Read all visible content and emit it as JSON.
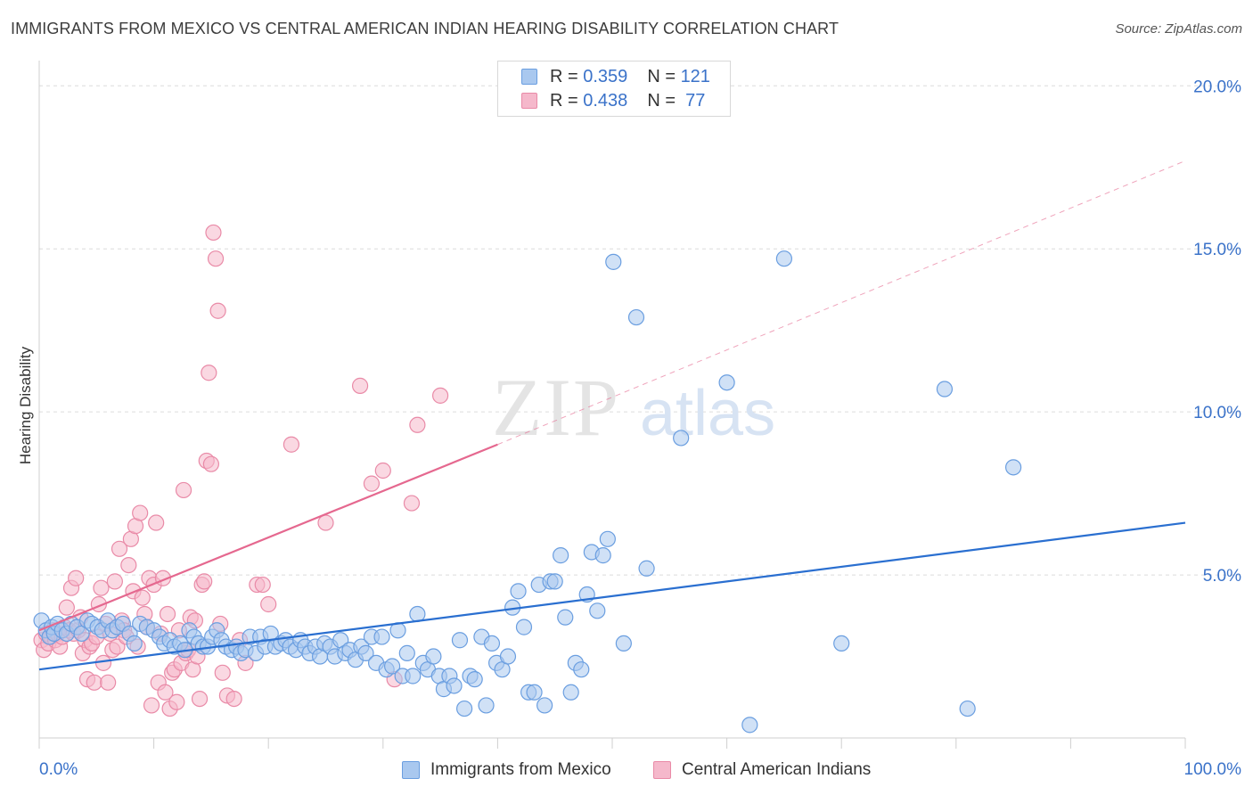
{
  "header": {
    "title": "IMMIGRANTS FROM MEXICO VS CENTRAL AMERICAN INDIAN HEARING DISABILITY CORRELATION CHART",
    "source": "Source: ZipAtlas.com"
  },
  "watermark": {
    "zip": "ZIP",
    "atlas": "atlas"
  },
  "legend": {
    "rows": [
      {
        "r_label": "R =",
        "r_value": "0.359",
        "n_label": "N =",
        "n_value": "121"
      },
      {
        "r_label": "R =",
        "r_value": "0.438",
        "n_label": "N =",
        "n_value": "77"
      }
    ]
  },
  "bottom_legend": {
    "series1": "Immigrants from Mexico",
    "series2": "Central American Indians"
  },
  "colors": {
    "blue_fill": "#a9c8ef",
    "blue_stroke": "#6a9ee0",
    "blue_line": "#2a6fd0",
    "pink_fill": "#f5b8cb",
    "pink_stroke": "#e98aa7",
    "pink_line": "#e5688f",
    "tick_label": "#3a72c9",
    "grid": "#dcdcdc"
  },
  "chart_data": {
    "type": "scatter",
    "title": "IMMIGRANTS FROM MEXICO VS CENTRAL AMERICAN INDIAN HEARING DISABILITY CORRELATION CHART",
    "xlabel": "",
    "ylabel": "Hearing Disability",
    "xlim": [
      0,
      100
    ],
    "ylim": [
      0,
      20.5
    ],
    "x_tick_labels": [
      {
        "value": 0,
        "label": "0.0%"
      },
      {
        "value": 100,
        "label": "100.0%"
      }
    ],
    "y_tick_labels": [
      {
        "value": 5,
        "label": "5.0%"
      },
      {
        "value": 10,
        "label": "10.0%"
      },
      {
        "value": 15,
        "label": "15.0%"
      },
      {
        "value": 20,
        "label": "20.0%"
      }
    ],
    "grid": true,
    "legend_position": "top-center",
    "series": [
      {
        "name": "Immigrants from Mexico",
        "color": "#a9c8ef",
        "trend": {
          "x": [
            0,
            100
          ],
          "y": [
            2.1,
            6.6
          ],
          "style": "solid"
        },
        "points": [
          [
            0.2,
            3.6
          ],
          [
            0.6,
            3.3
          ],
          [
            0.9,
            3.1
          ],
          [
            1.1,
            3.4
          ],
          [
            1.3,
            3.2
          ],
          [
            1.6,
            3.5
          ],
          [
            2.0,
            3.3
          ],
          [
            2.4,
            3.2
          ],
          [
            2.8,
            3.5
          ],
          [
            3.3,
            3.4
          ],
          [
            3.7,
            3.2
          ],
          [
            4.2,
            3.6
          ],
          [
            4.6,
            3.5
          ],
          [
            5.1,
            3.4
          ],
          [
            5.5,
            3.3
          ],
          [
            6.0,
            3.6
          ],
          [
            6.4,
            3.3
          ],
          [
            6.8,
            3.4
          ],
          [
            7.3,
            3.5
          ],
          [
            7.9,
            3.2
          ],
          [
            8.3,
            2.9
          ],
          [
            8.8,
            3.5
          ],
          [
            9.4,
            3.4
          ],
          [
            10.0,
            3.3
          ],
          [
            10.5,
            3.1
          ],
          [
            10.9,
            2.9
          ],
          [
            11.4,
            3.0
          ],
          [
            11.8,
            2.8
          ],
          [
            12.3,
            2.9
          ],
          [
            12.7,
            2.7
          ],
          [
            13.1,
            3.3
          ],
          [
            13.5,
            3.1
          ],
          [
            13.9,
            2.9
          ],
          [
            14.3,
            2.8
          ],
          [
            14.7,
            2.8
          ],
          [
            15.1,
            3.1
          ],
          [
            15.5,
            3.3
          ],
          [
            15.9,
            3.0
          ],
          [
            16.3,
            2.8
          ],
          [
            16.8,
            2.7
          ],
          [
            17.2,
            2.8
          ],
          [
            17.6,
            2.6
          ],
          [
            18.0,
            2.7
          ],
          [
            18.4,
            3.1
          ],
          [
            18.9,
            2.6
          ],
          [
            19.3,
            3.1
          ],
          [
            19.7,
            2.8
          ],
          [
            20.2,
            3.2
          ],
          [
            20.6,
            2.8
          ],
          [
            21.1,
            2.9
          ],
          [
            21.5,
            3.0
          ],
          [
            21.9,
            2.8
          ],
          [
            22.4,
            2.7
          ],
          [
            22.8,
            3.0
          ],
          [
            23.2,
            2.8
          ],
          [
            23.6,
            2.6
          ],
          [
            24.1,
            2.8
          ],
          [
            24.5,
            2.5
          ],
          [
            24.9,
            2.9
          ],
          [
            25.4,
            2.8
          ],
          [
            25.8,
            2.5
          ],
          [
            26.3,
            3.0
          ],
          [
            26.7,
            2.6
          ],
          [
            27.1,
            2.7
          ],
          [
            27.6,
            2.4
          ],
          [
            28.1,
            2.8
          ],
          [
            28.5,
            2.6
          ],
          [
            29.0,
            3.1
          ],
          [
            29.4,
            2.3
          ],
          [
            29.9,
            3.1
          ],
          [
            30.3,
            2.1
          ],
          [
            30.8,
            2.2
          ],
          [
            31.3,
            3.3
          ],
          [
            31.7,
            1.9
          ],
          [
            32.1,
            2.6
          ],
          [
            32.6,
            1.9
          ],
          [
            33.0,
            3.8
          ],
          [
            33.5,
            2.3
          ],
          [
            33.9,
            2.1
          ],
          [
            34.4,
            2.5
          ],
          [
            34.9,
            1.9
          ],
          [
            35.3,
            1.5
          ],
          [
            35.8,
            1.9
          ],
          [
            36.2,
            1.6
          ],
          [
            36.7,
            3.0
          ],
          [
            37.1,
            0.9
          ],
          [
            37.6,
            1.9
          ],
          [
            38.0,
            1.8
          ],
          [
            38.6,
            3.1
          ],
          [
            39.0,
            1.0
          ],
          [
            39.5,
            2.9
          ],
          [
            39.9,
            2.3
          ],
          [
            40.4,
            2.1
          ],
          [
            40.9,
            2.5
          ],
          [
            41.3,
            4.0
          ],
          [
            41.8,
            4.5
          ],
          [
            42.3,
            3.4
          ],
          [
            42.7,
            1.4
          ],
          [
            43.2,
            1.4
          ],
          [
            43.6,
            4.7
          ],
          [
            44.1,
            1.0
          ],
          [
            44.6,
            4.8
          ],
          [
            45.0,
            4.8
          ],
          [
            45.5,
            5.6
          ],
          [
            45.9,
            3.7
          ],
          [
            46.4,
            1.4
          ],
          [
            46.8,
            2.3
          ],
          [
            47.3,
            2.1
          ],
          [
            47.8,
            4.4
          ],
          [
            48.2,
            5.7
          ],
          [
            48.7,
            3.9
          ],
          [
            49.2,
            5.6
          ],
          [
            49.6,
            6.1
          ],
          [
            50.1,
            14.6
          ],
          [
            51.0,
            2.9
          ],
          [
            52.1,
            12.9
          ],
          [
            53.0,
            5.2
          ],
          [
            56.0,
            9.2
          ],
          [
            60.0,
            10.9
          ],
          [
            62.0,
            0.4
          ],
          [
            65.0,
            14.7
          ],
          [
            70.0,
            2.9
          ],
          [
            79.0,
            10.7
          ],
          [
            81.0,
            0.9
          ],
          [
            85.0,
            8.3
          ]
        ]
      },
      {
        "name": "Central American Indians",
        "color": "#f5b8cb",
        "trend": {
          "x": [
            0,
            40
          ],
          "y": [
            3.3,
            9.0
          ],
          "style": "solid",
          "dashed_extension": {
            "x": [
              40,
              100
            ],
            "y": [
              9.0,
              17.7
            ]
          }
        },
        "points": [
          [
            0.2,
            3.0
          ],
          [
            0.4,
            2.7
          ],
          [
            0.6,
            3.2
          ],
          [
            0.8,
            2.9
          ],
          [
            1.0,
            3.1
          ],
          [
            1.2,
            3.3
          ],
          [
            1.4,
            3.0
          ],
          [
            1.6,
            3.2
          ],
          [
            1.8,
            2.8
          ],
          [
            2.0,
            3.1
          ],
          [
            2.2,
            3.4
          ],
          [
            2.4,
            4.0
          ],
          [
            2.6,
            3.3
          ],
          [
            2.8,
            4.6
          ],
          [
            3.0,
            3.2
          ],
          [
            3.2,
            4.9
          ],
          [
            3.4,
            3.3
          ],
          [
            3.6,
            3.7
          ],
          [
            3.8,
            2.6
          ],
          [
            4.0,
            3.0
          ],
          [
            4.2,
            1.8
          ],
          [
            4.4,
            2.8
          ],
          [
            4.6,
            2.9
          ],
          [
            4.8,
            1.7
          ],
          [
            5.0,
            3.1
          ],
          [
            5.2,
            4.1
          ],
          [
            5.4,
            4.6
          ],
          [
            5.6,
            2.3
          ],
          [
            5.8,
            3.5
          ],
          [
            6.0,
            1.7
          ],
          [
            6.2,
            3.2
          ],
          [
            6.4,
            2.7
          ],
          [
            6.6,
            4.8
          ],
          [
            6.8,
            2.8
          ],
          [
            7.0,
            5.8
          ],
          [
            7.2,
            3.6
          ],
          [
            7.4,
            3.3
          ],
          [
            7.6,
            3.1
          ],
          [
            7.8,
            5.3
          ],
          [
            8.0,
            6.1
          ],
          [
            8.2,
            4.5
          ],
          [
            8.4,
            6.5
          ],
          [
            8.6,
            2.8
          ],
          [
            8.8,
            6.9
          ],
          [
            9.0,
            4.3
          ],
          [
            9.2,
            3.8
          ],
          [
            9.4,
            3.4
          ],
          [
            9.6,
            4.9
          ],
          [
            9.8,
            1.0
          ],
          [
            10.0,
            4.7
          ],
          [
            10.2,
            6.6
          ],
          [
            10.4,
            1.7
          ],
          [
            10.6,
            3.2
          ],
          [
            10.8,
            4.9
          ],
          [
            11.0,
            1.4
          ],
          [
            11.2,
            3.8
          ],
          [
            11.4,
            0.9
          ],
          [
            11.6,
            2.0
          ],
          [
            11.8,
            2.1
          ],
          [
            12.0,
            1.1
          ],
          [
            12.2,
            3.3
          ],
          [
            12.4,
            2.3
          ],
          [
            12.6,
            7.6
          ],
          [
            12.8,
            2.6
          ],
          [
            13.0,
            2.7
          ],
          [
            13.2,
            3.7
          ],
          [
            13.4,
            2.1
          ],
          [
            13.6,
            3.6
          ],
          [
            13.8,
            2.5
          ],
          [
            14.0,
            1.2
          ],
          [
            14.2,
            4.7
          ],
          [
            14.4,
            4.8
          ],
          [
            14.6,
            8.5
          ],
          [
            14.8,
            11.2
          ],
          [
            15.0,
            8.4
          ],
          [
            15.2,
            15.5
          ],
          [
            15.4,
            14.7
          ],
          [
            15.6,
            13.1
          ],
          [
            15.8,
            3.5
          ],
          [
            16.0,
            2.0
          ],
          [
            16.4,
            1.3
          ],
          [
            17.0,
            1.2
          ],
          [
            17.5,
            3.0
          ],
          [
            18.0,
            2.3
          ],
          [
            19.0,
            4.7
          ],
          [
            19.5,
            4.7
          ],
          [
            20.0,
            4.1
          ],
          [
            22.0,
            9.0
          ],
          [
            25.0,
            6.6
          ],
          [
            28.0,
            10.8
          ],
          [
            29.0,
            7.8
          ],
          [
            30.0,
            8.2
          ],
          [
            31.0,
            1.8
          ],
          [
            32.5,
            7.2
          ],
          [
            33.0,
            9.6
          ],
          [
            35.0,
            10.5
          ]
        ]
      }
    ]
  }
}
